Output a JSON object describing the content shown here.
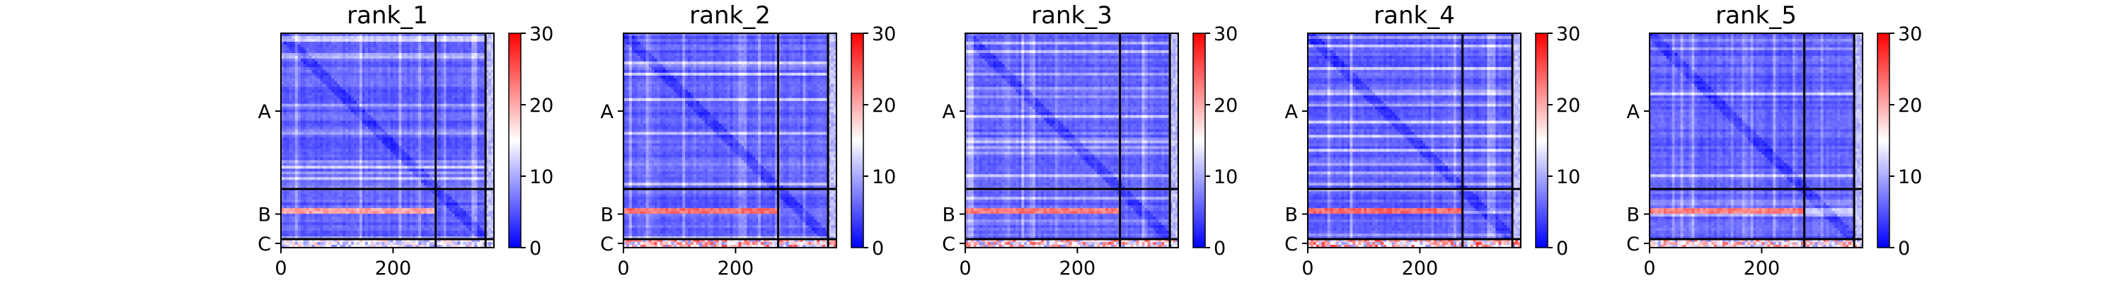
{
  "chart_data": [
    {
      "type": "heatmap",
      "title": "rank_1",
      "xticks": [
        0,
        200
      ],
      "xlim": [
        0,
        380
      ],
      "row_labels": [
        "A",
        "B",
        "C"
      ],
      "chain_boundaries": [
        276,
        365
      ],
      "colorbar": {
        "min": 0,
        "max": 30,
        "ticks": [
          0,
          10,
          20,
          30
        ],
        "colormap": [
          "#0000ff",
          "#ffffff",
          "#ff0000"
        ]
      },
      "hot_rows": [
        313
      ],
      "c_row_intensity": 0.55
    },
    {
      "type": "heatmap",
      "title": "rank_2",
      "xticks": [
        0,
        200
      ],
      "xlim": [
        0,
        380
      ],
      "row_labels": [
        "A",
        "B",
        "C"
      ],
      "chain_boundaries": [
        276,
        365
      ],
      "colorbar": {
        "min": 0,
        "max": 30,
        "ticks": [
          0,
          10,
          20,
          30
        ],
        "colormap": [
          "#0000ff",
          "#ffffff",
          "#ff0000"
        ]
      },
      "hot_rows": [
        313
      ],
      "c_row_intensity": 0.9
    },
    {
      "type": "heatmap",
      "title": "rank_3",
      "xticks": [
        0,
        200
      ],
      "xlim": [
        0,
        380
      ],
      "row_labels": [
        "A",
        "B",
        "C"
      ],
      "chain_boundaries": [
        276,
        365
      ],
      "colorbar": {
        "min": 0,
        "max": 30,
        "ticks": [
          0,
          10,
          20,
          30
        ],
        "colormap": [
          "#0000ff",
          "#ffffff",
          "#ff0000"
        ]
      },
      "hot_rows": [
        313
      ],
      "c_row_intensity": 0.85
    },
    {
      "type": "heatmap",
      "title": "rank_4",
      "xticks": [
        0,
        200
      ],
      "xlim": [
        0,
        380
      ],
      "row_labels": [
        "A",
        "B",
        "C"
      ],
      "chain_boundaries": [
        276,
        365
      ],
      "colorbar": {
        "min": 0,
        "max": 30,
        "ticks": [
          0,
          10,
          20,
          30
        ],
        "colormap": [
          "#0000ff",
          "#ffffff",
          "#ff0000"
        ]
      },
      "hot_rows": [
        313
      ],
      "c_row_intensity": 0.95
    },
    {
      "type": "heatmap",
      "title": "rank_5",
      "xticks": [
        0,
        200
      ],
      "xlim": [
        0,
        380
      ],
      "row_labels": [
        "A",
        "B",
        "C"
      ],
      "chain_boundaries": [
        276,
        365
      ],
      "colorbar": {
        "min": 0,
        "max": 30,
        "ticks": [
          0,
          10,
          20,
          30
        ],
        "colormap": [
          "#0000ff",
          "#ffffff",
          "#ff0000"
        ]
      },
      "hot_rows": [
        313
      ],
      "c_row_intensity": 0.8
    }
  ]
}
